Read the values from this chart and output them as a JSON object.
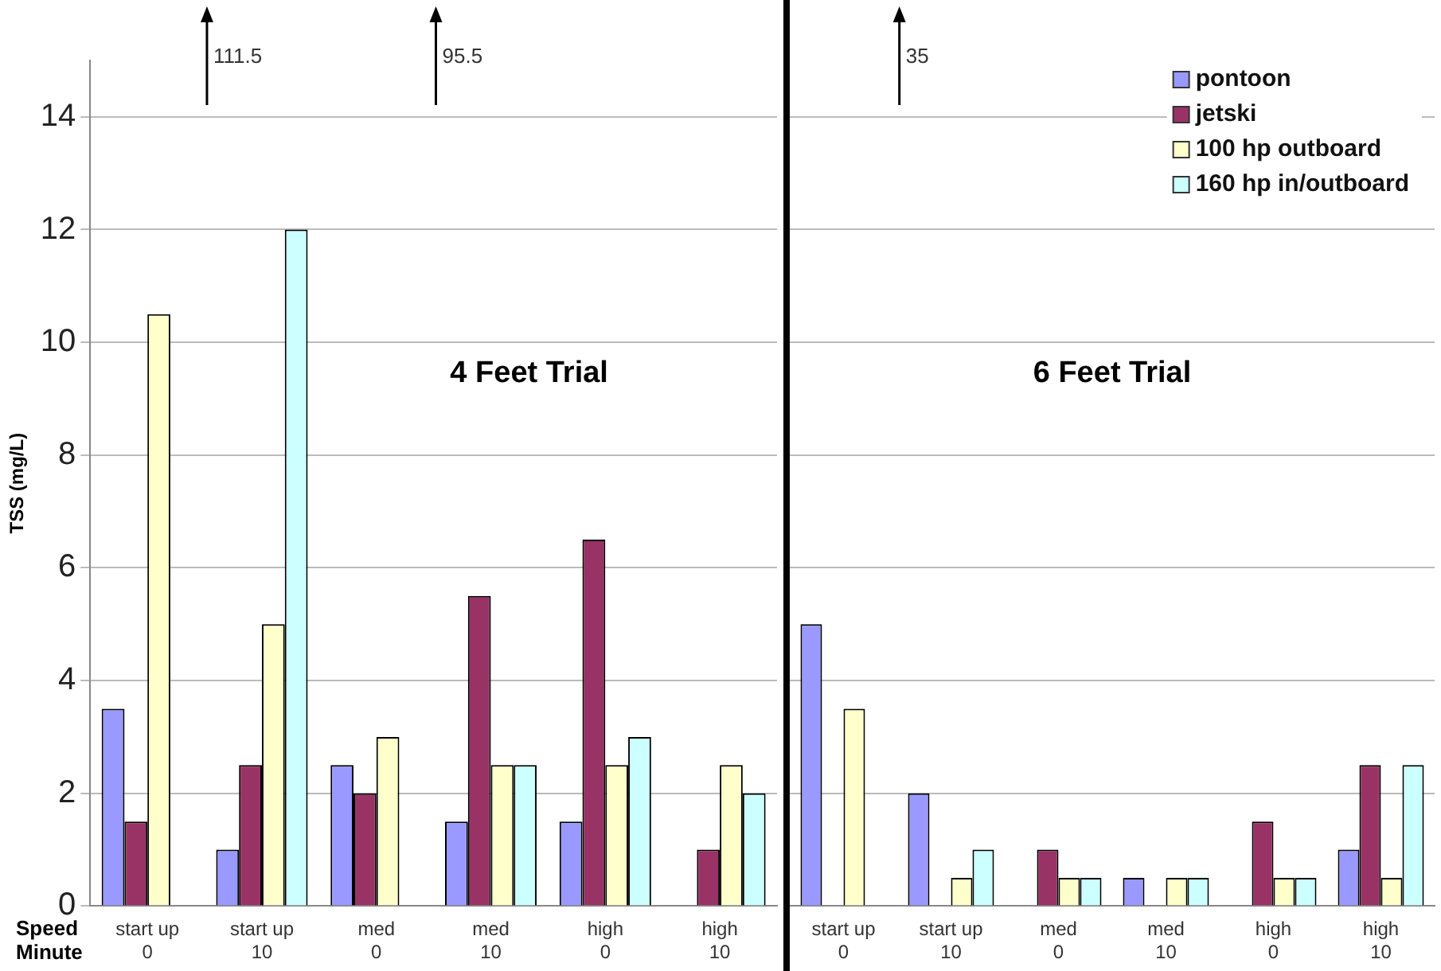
{
  "chart_data": [
    {
      "type": "bar",
      "title": "4 Feet Trial",
      "ylabel": "TSS (mg/L)",
      "categories": [
        "start up\n0",
        "start up\n10",
        "med\n0",
        "med\n10",
        "high\n0",
        "high\n10"
      ],
      "series": [
        {
          "color": "#9999ff",
          "values": [
            3.5,
            1,
            2.5,
            1.5,
            1.5,
            null
          ]
        },
        {
          "color": "#993366",
          "values": [
            1.5,
            2.5,
            2,
            5.5,
            6.5,
            1
          ]
        },
        {
          "color": "#ffffcc",
          "values": [
            10.5,
            5,
            3,
            2.5,
            2.5,
            2.5
          ]
        },
        {
          "color": "#ccffff",
          "values": [
            null,
            12,
            null,
            2.5,
            3,
            2
          ]
        }
      ],
      "ylim": [
        0,
        15
      ],
      "yticks": [
        0,
        2,
        4,
        6,
        8,
        10,
        12,
        14
      ],
      "grid": "y",
      "tick_labels": "xy",
      "legend": false,
      "xlabel": "Speed\nMinute",
      "annotations": [
        "111.5",
        "95.5"
      ]
    },
    {
      "type": "bar",
      "title": "6 Feet Trial",
      "categories": [
        "start up\n0",
        "start up\n10",
        "med\n0",
        "med\n10",
        "high\n0",
        "high\n10"
      ],
      "series": [
        {
          "name": "pontoon",
          "color": "#9999ff",
          "values": [
            5,
            2,
            null,
            0.5,
            null,
            1
          ]
        },
        {
          "name": "jetski",
          "color": "#993366",
          "values": [
            null,
            null,
            1,
            null,
            1.5,
            2.5
          ]
        },
        {
          "name": "100 hp outboard",
          "color": "#ffffcc",
          "values": [
            3.5,
            0.5,
            0.5,
            0.5,
            0.5,
            0.5
          ]
        },
        {
          "name": "160 hp in/outboard",
          "color": "#ccffff",
          "values": [
            null,
            1,
            0.5,
            0.5,
            0.5,
            2.5
          ]
        }
      ],
      "ylim": [
        0,
        15
      ],
      "yticks": [
        0,
        2,
        4,
        6,
        8,
        10,
        12,
        14
      ],
      "grid": "y",
      "tick_labels": "x",
      "legend": "top right",
      "annotations": [
        "35"
      ]
    }
  ]
}
